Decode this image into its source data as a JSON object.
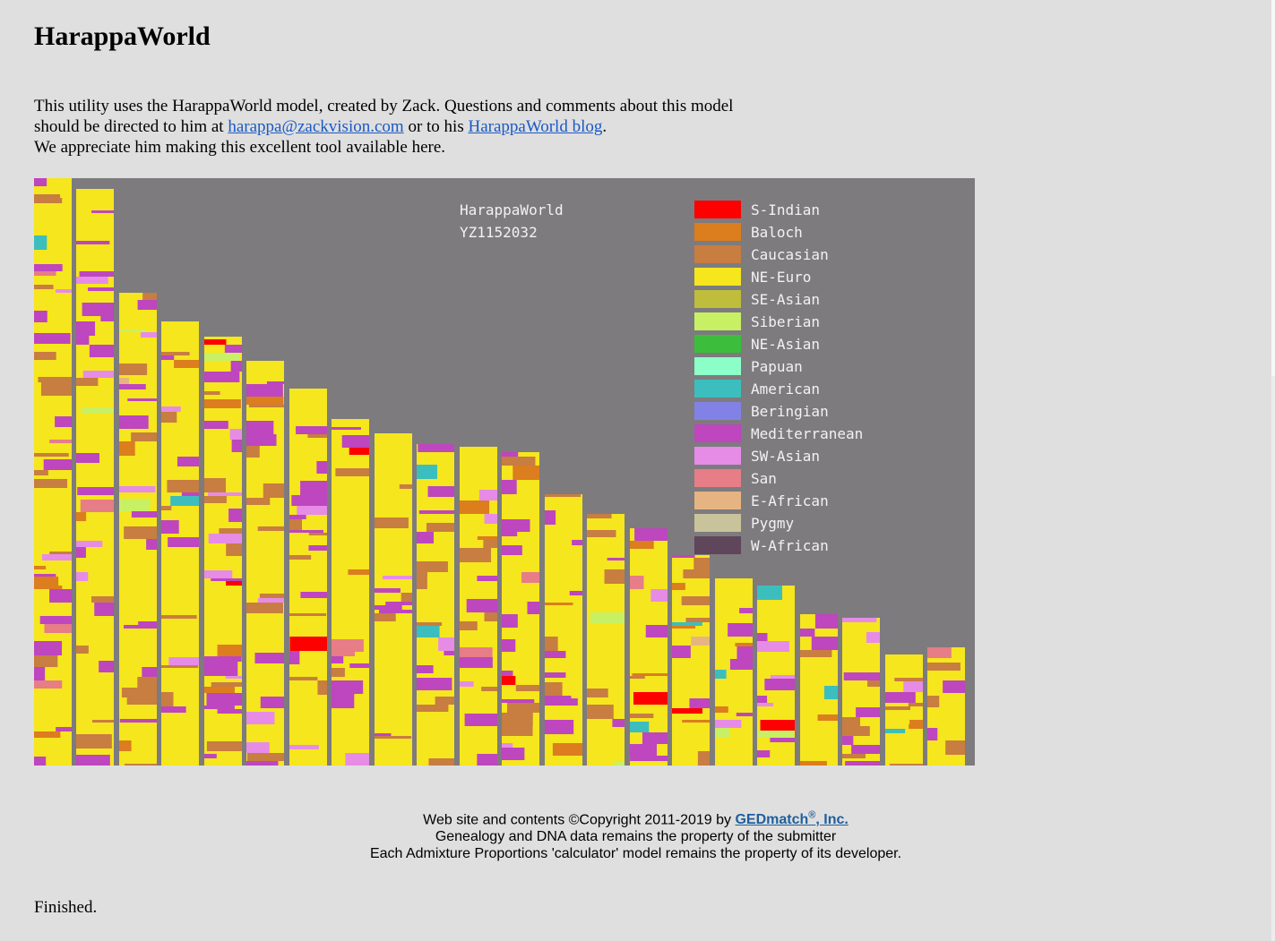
{
  "page": {
    "title": "HarappaWorld",
    "intro_line1": "This utility uses the HarappaWorld model, created by Zack. Questions and comments about this model",
    "intro_line2_pre": "should be directed to him at ",
    "email_link": "harappa@zackvision.com",
    "intro_line2_mid": " or to his ",
    "blog_link": "HarappaWorld blog",
    "intro_line2_post": ".",
    "intro_line3": "We appreciate him making this excellent tool available here.",
    "finished": "Finished."
  },
  "chart_data": {
    "type": "chromosome-painting",
    "title": "HarappaWorld",
    "kit_id": "YZ1152032",
    "chromosomes": 22,
    "background_color": "#7d7b7e",
    "legend": [
      {
        "label": "S-Indian",
        "color": "#ff0000"
      },
      {
        "label": "Baloch",
        "color": "#dc7d1e"
      },
      {
        "label": "Caucasian",
        "color": "#c87d41"
      },
      {
        "label": "NE-Euro",
        "color": "#f5e61e"
      },
      {
        "label": "SE-Asian",
        "color": "#bebe3c"
      },
      {
        "label": "Siberian",
        "color": "#c8f064"
      },
      {
        "label": "NE-Asian",
        "color": "#3cbe3c"
      },
      {
        "label": "Papuan",
        "color": "#8cffc8"
      },
      {
        "label": "American",
        "color": "#3cbebe"
      },
      {
        "label": "Beringian",
        "color": "#8282e6"
      },
      {
        "label": "Mediterranean",
        "color": "#be46be"
      },
      {
        "label": "SW-Asian",
        "color": "#e68ce6"
      },
      {
        "label": "San",
        "color": "#e67d87"
      },
      {
        "label": "E-African",
        "color": "#e6b482"
      },
      {
        "label": "Pygmy",
        "color": "#c8c39b"
      },
      {
        "label": "W-African",
        "color": "#5f465a"
      }
    ]
  },
  "footer": {
    "line1_pre": "Web site and contents ©Copyright 2011-2019 by ",
    "gedmatch_link": "GEDmatch",
    "reg_mark": "®",
    "gedmatch_suffix": ", Inc.",
    "line2": "Genealogy and DNA data remains the property of the submitter",
    "line3": "Each Admixture Proportions 'calculator' model remains the property of its developer."
  }
}
